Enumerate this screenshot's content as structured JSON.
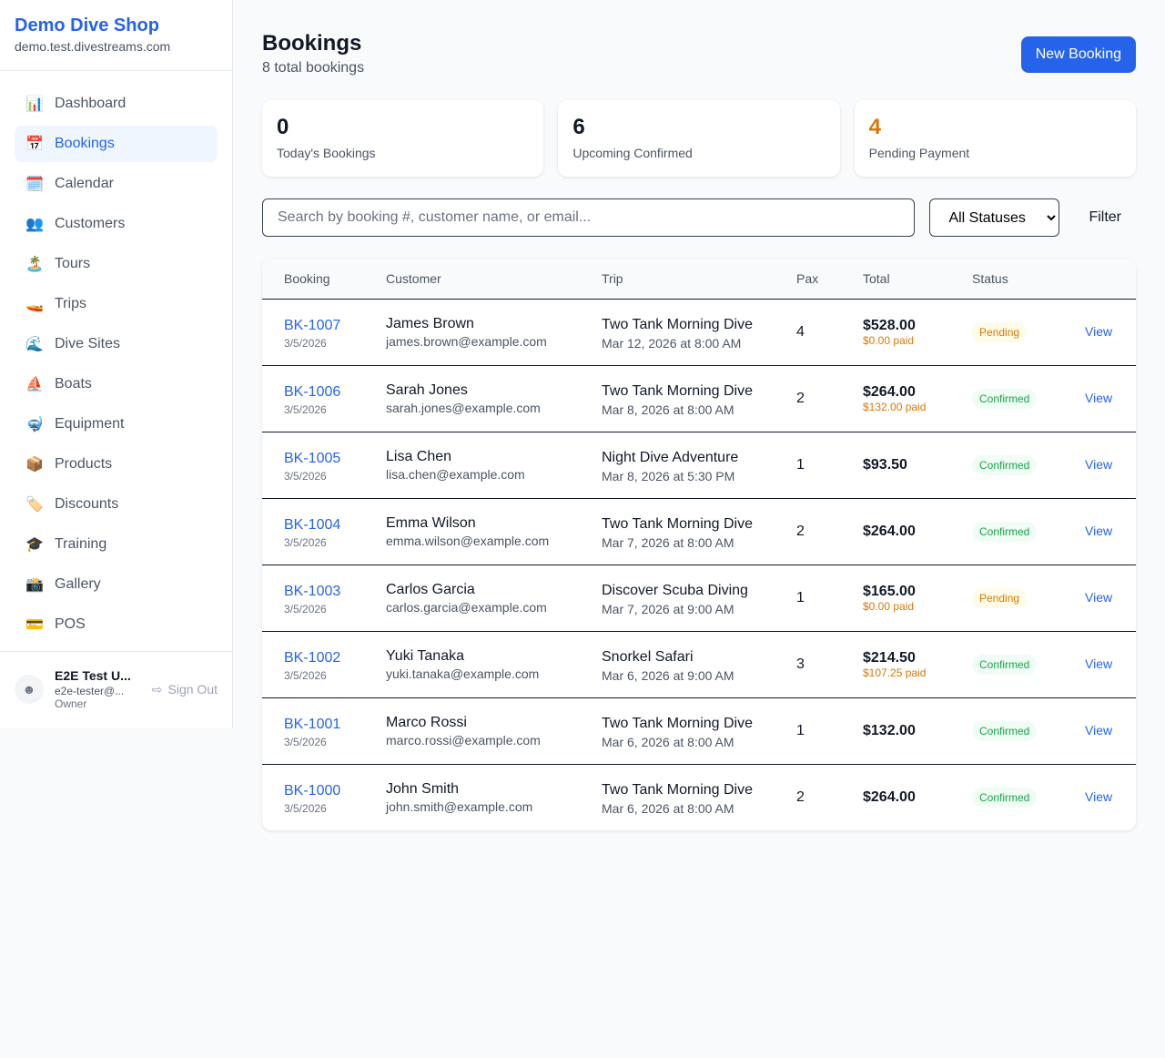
{
  "shop": {
    "name": "Demo Dive Shop",
    "domain": "demo.test.divestreams.com"
  },
  "nav": [
    {
      "label": "Dashboard",
      "icon": "📊",
      "active": false
    },
    {
      "label": "Bookings",
      "icon": "📅",
      "active": true
    },
    {
      "label": "Calendar",
      "icon": "🗓️",
      "active": false
    },
    {
      "label": "Customers",
      "icon": "👥",
      "active": false
    },
    {
      "label": "Tours",
      "icon": "🏝️",
      "active": false
    },
    {
      "label": "Trips",
      "icon": "🚤",
      "active": false
    },
    {
      "label": "Dive Sites",
      "icon": "🌊",
      "active": false
    },
    {
      "label": "Boats",
      "icon": "⛵",
      "active": false
    },
    {
      "label": "Equipment",
      "icon": "🤿",
      "active": false
    },
    {
      "label": "Products",
      "icon": "📦",
      "active": false
    },
    {
      "label": "Discounts",
      "icon": "🏷️",
      "active": false
    },
    {
      "label": "Training",
      "icon": "🎓",
      "active": false
    },
    {
      "label": "Gallery",
      "icon": "📸",
      "active": false
    },
    {
      "label": "POS",
      "icon": "💳",
      "active": false
    }
  ],
  "user": {
    "name": "E2E Test U...",
    "email": "e2e-tester@...",
    "role": "Owner",
    "sign_out": "Sign Out"
  },
  "page": {
    "title": "Bookings",
    "subtitle": "8 total bookings",
    "new_button": "New Booking"
  },
  "stats": [
    {
      "value": "0",
      "label": "Today's Bookings",
      "color": "#111827"
    },
    {
      "value": "6",
      "label": "Upcoming Confirmed",
      "color": "#111827"
    },
    {
      "value": "4",
      "label": "Pending Payment",
      "color": "#d97706"
    }
  ],
  "filters": {
    "search_placeholder": "Search by booking #, customer name, or email...",
    "status_selected": "All Statuses",
    "filter_button": "Filter"
  },
  "table": {
    "headers": [
      "Booking",
      "Customer",
      "Trip",
      "Pax",
      "Total",
      "Status",
      ""
    ],
    "rows": [
      {
        "id": "BK-1007",
        "date": "3/5/2026",
        "customer": "James Brown",
        "email": "james.brown@example.com",
        "trip": "Two Tank Morning Dive",
        "trip_time": "Mar 12, 2026 at 8:00 AM",
        "pax": "4",
        "total": "$528.00",
        "paid": "$0.00 paid",
        "status": "Pending",
        "action": "View"
      },
      {
        "id": "BK-1006",
        "date": "3/5/2026",
        "customer": "Sarah Jones",
        "email": "sarah.jones@example.com",
        "trip": "Two Tank Morning Dive",
        "trip_time": "Mar 8, 2026 at 8:00 AM",
        "pax": "2",
        "total": "$264.00",
        "paid": "$132.00 paid",
        "status": "Confirmed",
        "action": "View"
      },
      {
        "id": "BK-1005",
        "date": "3/5/2026",
        "customer": "Lisa Chen",
        "email": "lisa.chen@example.com",
        "trip": "Night Dive Adventure",
        "trip_time": "Mar 8, 2026 at 5:30 PM",
        "pax": "1",
        "total": "$93.50",
        "paid": "",
        "status": "Confirmed",
        "action": "View"
      },
      {
        "id": "BK-1004",
        "date": "3/5/2026",
        "customer": "Emma Wilson",
        "email": "emma.wilson@example.com",
        "trip": "Two Tank Morning Dive",
        "trip_time": "Mar 7, 2026 at 8:00 AM",
        "pax": "2",
        "total": "$264.00",
        "paid": "",
        "status": "Confirmed",
        "action": "View"
      },
      {
        "id": "BK-1003",
        "date": "3/5/2026",
        "customer": "Carlos Garcia",
        "email": "carlos.garcia@example.com",
        "trip": "Discover Scuba Diving",
        "trip_time": "Mar 7, 2026 at 9:00 AM",
        "pax": "1",
        "total": "$165.00",
        "paid": "$0.00 paid",
        "status": "Pending",
        "action": "View"
      },
      {
        "id": "BK-1002",
        "date": "3/5/2026",
        "customer": "Yuki Tanaka",
        "email": "yuki.tanaka@example.com",
        "trip": "Snorkel Safari",
        "trip_time": "Mar 6, 2026 at 9:00 AM",
        "pax": "3",
        "total": "$214.50",
        "paid": "$107.25 paid",
        "status": "Confirmed",
        "action": "View"
      },
      {
        "id": "BK-1001",
        "date": "3/5/2026",
        "customer": "Marco Rossi",
        "email": "marco.rossi@example.com",
        "trip": "Two Tank Morning Dive",
        "trip_time": "Mar 6, 2026 at 8:00 AM",
        "pax": "1",
        "total": "$132.00",
        "paid": "",
        "status": "Confirmed",
        "action": "View"
      },
      {
        "id": "BK-1000",
        "date": "3/5/2026",
        "customer": "John Smith",
        "email": "john.smith@example.com",
        "trip": "Two Tank Morning Dive",
        "trip_time": "Mar 6, 2026 at 8:00 AM",
        "pax": "2",
        "total": "$264.00",
        "paid": "",
        "status": "Confirmed",
        "action": "View"
      }
    ]
  }
}
